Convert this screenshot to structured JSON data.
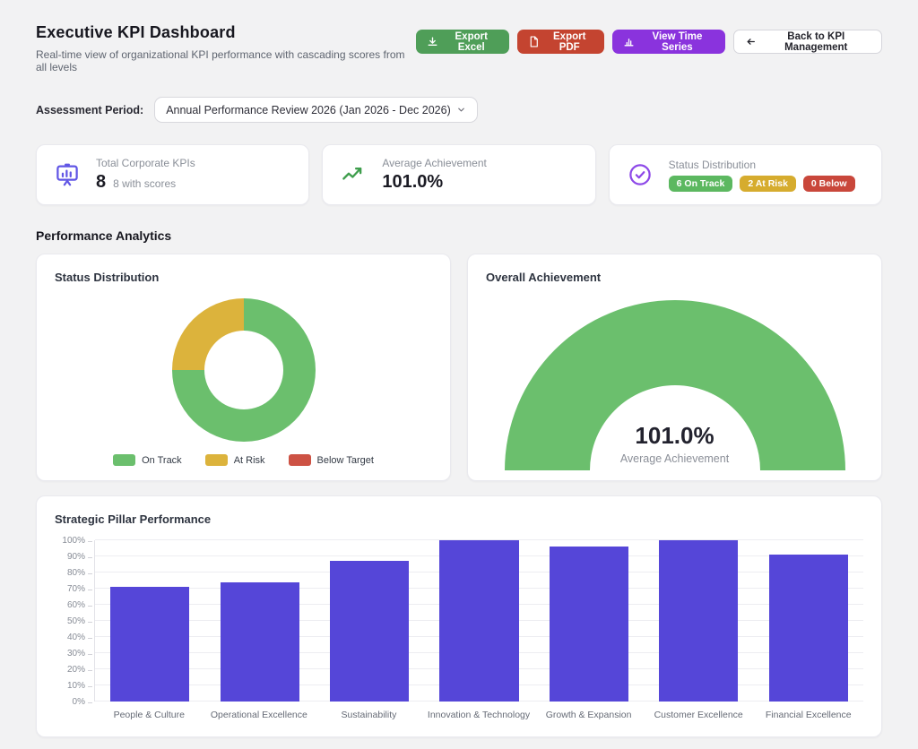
{
  "header": {
    "title": "Executive KPI Dashboard",
    "subtitle": "Real-time view of organizational KPI performance with cascading scores from all levels",
    "buttons": [
      {
        "label": "Export Excel",
        "color": "#4f9e58",
        "icon": "download-icon"
      },
      {
        "label": "Export PDF",
        "color": "#c44430",
        "icon": "file-document-icon"
      },
      {
        "label": "View Time Series",
        "color": "#8a33dd",
        "icon": "bar-chart-icon"
      },
      {
        "label": "Back to KPI Management",
        "color": "#ffffff",
        "icon": "arrow-left-icon"
      }
    ]
  },
  "filters": {
    "assessment_period_label": "Assessment Period:",
    "assessment_period_value": "Annual Performance Review 2026 (Jan 2026 - Dec 2026)"
  },
  "summary_cards": {
    "total_kpis": {
      "label": "Total Corporate KPIs",
      "value": "8",
      "sub": "8 with scores",
      "icon": "presentation-chart-icon",
      "icon_color": "#6156e5"
    },
    "average_achievement": {
      "label": "Average Achievement",
      "value": "101.0%",
      "icon": "trending-up-icon",
      "icon_color": "#3f9e4d"
    },
    "status_distribution": {
      "label": "Status Distribution",
      "icon": "check-circle-icon",
      "icon_color": "#8d48e8",
      "badges": [
        {
          "label": "6 On Track",
          "color": "#5cb860"
        },
        {
          "label": "2 At Risk",
          "color": "#d6ac2e"
        },
        {
          "label": "0 Below",
          "color": "#c9473b"
        }
      ]
    }
  },
  "analytics_section_title": "Performance Analytics",
  "chart_data": [
    {
      "type": "pie",
      "donut": true,
      "title": "Status Distribution",
      "labels": [
        "On Track",
        "At Risk",
        "Below Target"
      ],
      "values": [
        6,
        2,
        0
      ],
      "percentages": [
        75,
        25,
        0
      ],
      "colors": [
        "#6bbf6d",
        "#dcb33c",
        "#cd5244"
      ],
      "legend_position": "bottom"
    },
    {
      "type": "gauge",
      "title": "Overall Achievement",
      "value": 101.0,
      "display_value": "101.0%",
      "label": "Average Achievement",
      "min": 0,
      "max": 100,
      "color": "#6bbf6d"
    },
    {
      "type": "bar",
      "title": "Strategic Pillar Performance",
      "categories": [
        "People & Culture",
        "Operational Excellence",
        "Sustainability",
        "Innovation & Technology",
        "Growth & Expansion",
        "Customer Excellence",
        "Financial Excellence"
      ],
      "values": [
        71,
        74,
        87,
        100,
        96,
        100,
        91
      ],
      "unit": "%",
      "ylim": [
        0,
        100
      ],
      "ytick_step": 10,
      "bar_color": "#5546d8",
      "grid": true,
      "legend_position": "none"
    }
  ]
}
